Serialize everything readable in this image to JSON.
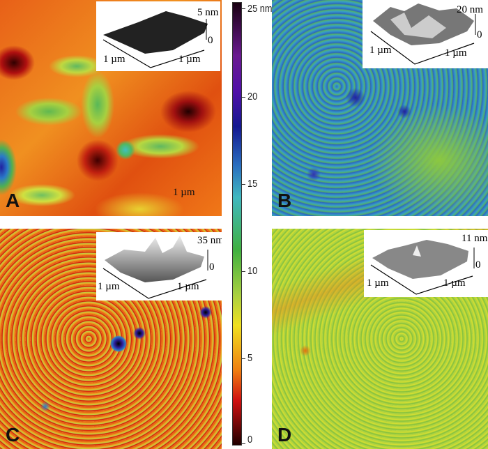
{
  "colorbar": {
    "ticks": [
      "25 nm",
      "20",
      "15",
      "10",
      "5",
      "0"
    ],
    "range_nm": [
      0,
      25
    ],
    "colors": [
      "#180010",
      "#6a1a90",
      "#141890",
      "#2a70c0",
      "#40b8c0",
      "#40b040",
      "#f0e020",
      "#f08010",
      "#d01010",
      "#200000"
    ]
  },
  "panels": [
    {
      "letter": "A",
      "scale_label": "1 µm",
      "inset": {
        "z_label": "5 nm",
        "zero": "0",
        "x_label": "1 µm",
        "y_label": "1 µm"
      }
    },
    {
      "letter": "B",
      "inset": {
        "z_label": "20 nm",
        "zero": "0",
        "x_label": "1 µm",
        "y_label": "1 µm"
      }
    },
    {
      "letter": "C",
      "inset": {
        "z_label": "35 nm",
        "zero": "0",
        "x_label": "1 µm",
        "y_label": "1 µm"
      }
    },
    {
      "letter": "D",
      "inset": {
        "z_label": "11 nm",
        "zero": "0",
        "x_label": "1 µm",
        "y_label": "1 µm"
      }
    }
  ]
}
